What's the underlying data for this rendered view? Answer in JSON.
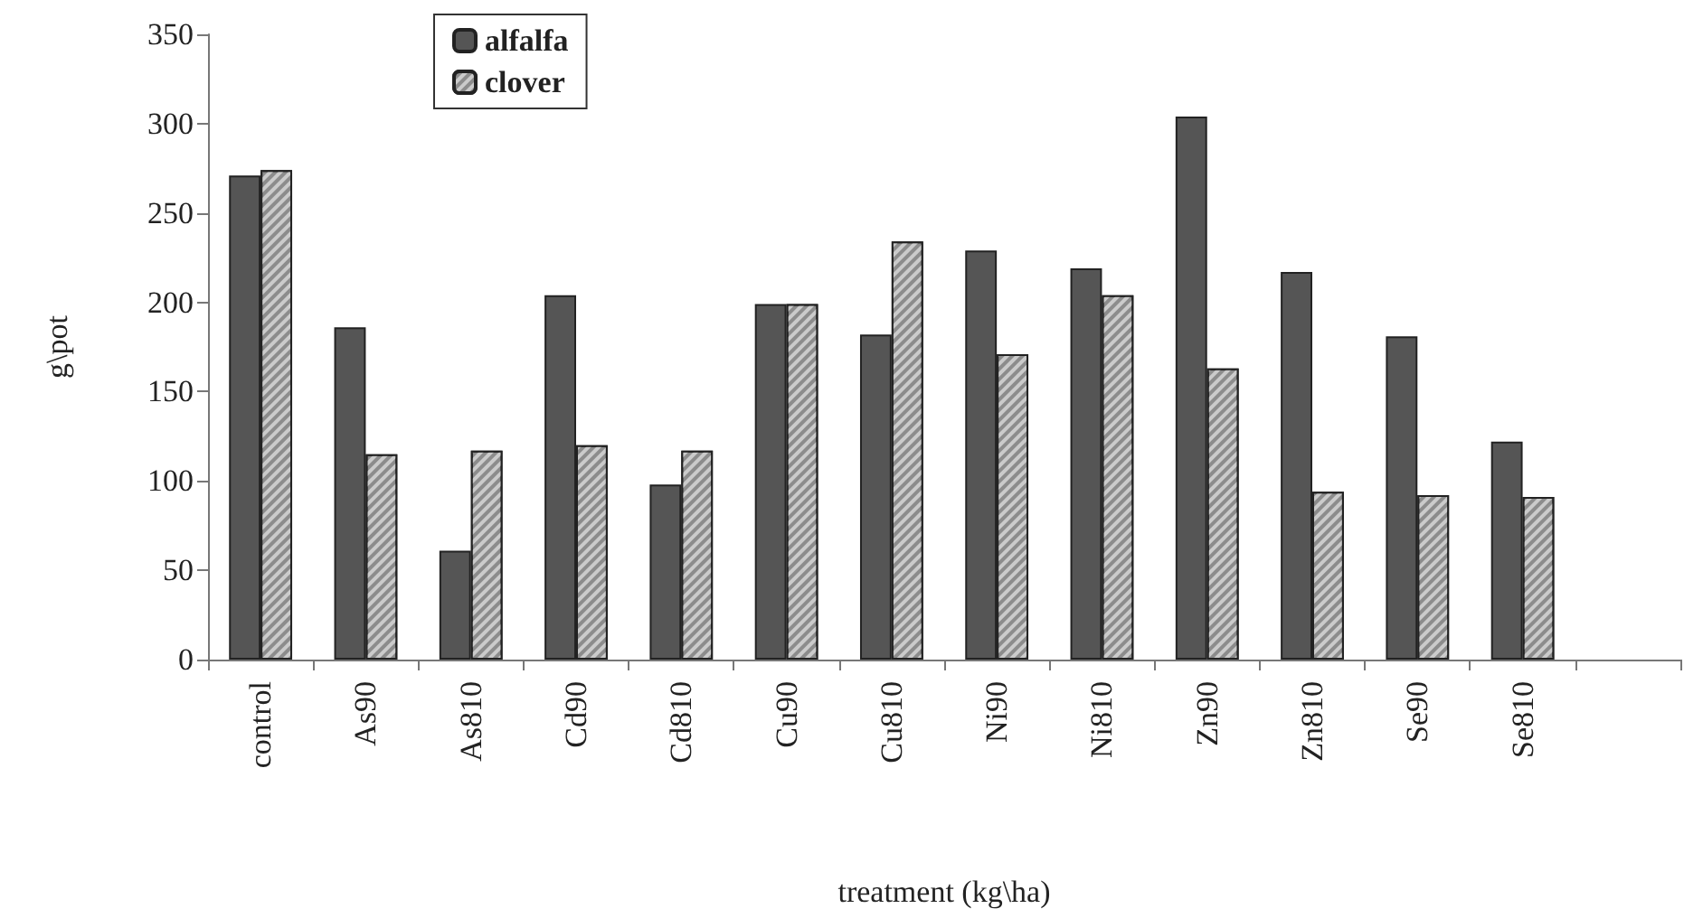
{
  "chart_data": {
    "type": "bar",
    "xlabel": "treatment (kg\\ha)",
    "ylabel": "g\\pot",
    "categories": [
      "control",
      "As90",
      "As810",
      "Cd90",
      "Cd810",
      "Cu90",
      "Cu810",
      "Ni90",
      "Ni810",
      "Zn90",
      "Zn810",
      "Se90",
      "Se810",
      null
    ],
    "series": [
      {
        "name": "alfalfa",
        "color": "#555555",
        "values": [
          271,
          186,
          61,
          204,
          98,
          199,
          182,
          229,
          219,
          304,
          217,
          181,
          122,
          null
        ]
      },
      {
        "name": "clover",
        "color": "#8c8c8c",
        "values": [
          274,
          115,
          117,
          120,
          117,
          199,
          234,
          171,
          204,
          163,
          94,
          92,
          91,
          null
        ]
      }
    ],
    "ylim": [
      0,
      350
    ],
    "yticks": [
      0,
      50,
      100,
      150,
      200,
      250,
      300,
      350
    ],
    "grid": false,
    "legend": "top left"
  }
}
